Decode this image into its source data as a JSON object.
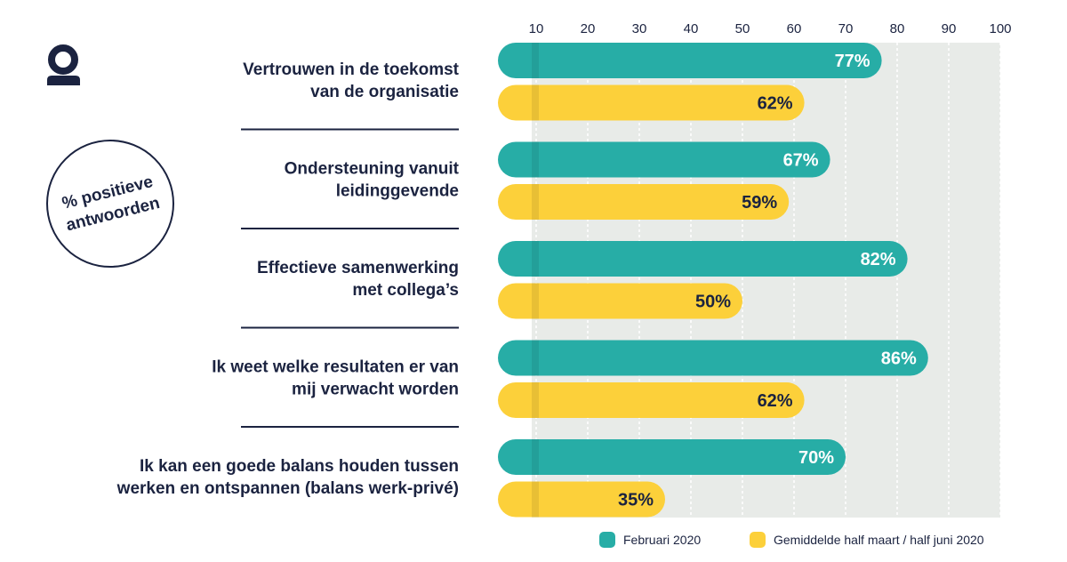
{
  "badge": {
    "line1": "% positieve",
    "line2": "antwoorden"
  },
  "colors": {
    "series1": "#27ada6",
    "series2": "#fcd03a",
    "track": "#e8ebe8",
    "text": "#1b2340"
  },
  "icons": {
    "logo": "brand-logo-icon"
  },
  "chart_data": {
    "type": "bar",
    "orientation": "horizontal",
    "xlim": [
      0,
      100
    ],
    "ticks": [
      10,
      20,
      30,
      40,
      50,
      60,
      70,
      80,
      90,
      100
    ],
    "tick_position": "top",
    "grid": true,
    "value_format": "%",
    "legend_position": "bottom-right",
    "categories": [
      [
        "Vertrouwen in de toekomst",
        "van de organisatie"
      ],
      [
        "Ondersteuning vanuit",
        "leidinggevende"
      ],
      [
        "Effectieve samenwerking",
        "met collega’s"
      ],
      [
        "Ik weet welke resultaten er van",
        "mij verwacht worden"
      ],
      [
        "Ik kan een goede balans houden tussen",
        "werken en ontspannen (balans werk-privé)"
      ]
    ],
    "series": [
      {
        "name": "Februari 2020",
        "values": [
          77,
          67,
          82,
          86,
          70
        ]
      },
      {
        "name": "Gemiddelde half maart / half juni 2020",
        "values": [
          62,
          59,
          50,
          62,
          35
        ]
      }
    ]
  }
}
